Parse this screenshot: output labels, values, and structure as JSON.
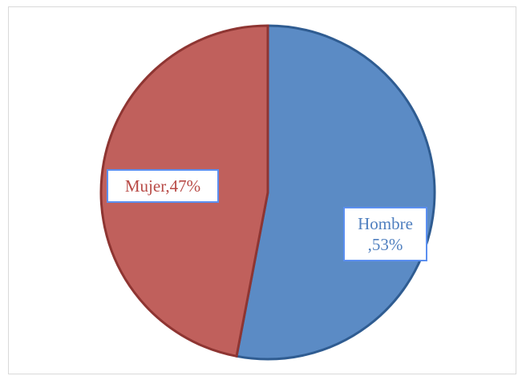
{
  "chart_data": {
    "type": "pie",
    "categories": [
      "Hombre",
      "Mujer"
    ],
    "values": [
      53,
      47
    ],
    "value_labels": [
      "Hombre ,53%",
      "Mujer,47%"
    ],
    "colors": [
      "#5b8bc5",
      "#c0605c"
    ]
  }
}
